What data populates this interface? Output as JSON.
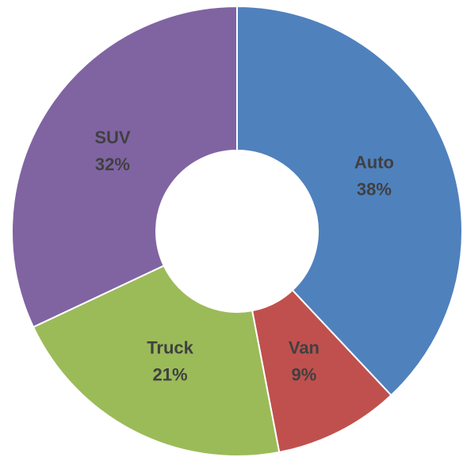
{
  "chart_data": {
    "type": "donut",
    "categories": [
      "Auto",
      "Van",
      "Truck",
      "SUV"
    ],
    "values": [
      38,
      9,
      21,
      32
    ],
    "value_labels": [
      "38%",
      "9%",
      "21%",
      "32%"
    ],
    "colors": [
      "#4f81bd",
      "#c0504d",
      "#9bbb59",
      "#8064a2"
    ]
  }
}
